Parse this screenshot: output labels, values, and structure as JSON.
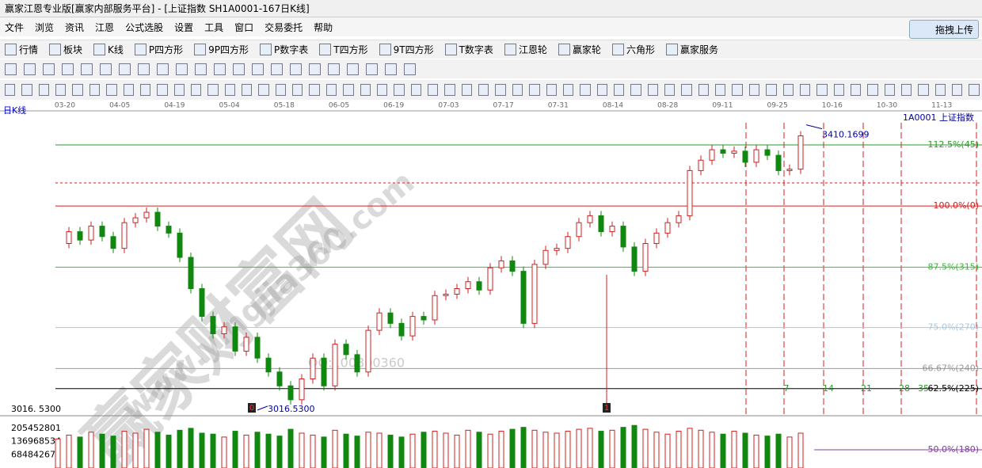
{
  "window": {
    "title": "赢家江恩专业版[赢家内部服务平台] - [上证指数  SH1A0001-167日K线]",
    "menu": [
      "文件",
      "浏览",
      "资讯",
      "江恩",
      "公式选股",
      "设置",
      "工具",
      "窗口",
      "交易委托",
      "帮助"
    ],
    "upload": "拖拽上传",
    "toolbar": [
      "行情",
      "板块",
      "K线",
      "P四方形",
      "9P四方形",
      "P数字表",
      "T四方形",
      "9T四方形",
      "T数字表",
      "江恩轮",
      "赢家轮",
      "六角形",
      "赢家服务"
    ]
  },
  "chart_data": {
    "type": "candlestick",
    "period": "日K线",
    "symbol": "1A0001  上证指数",
    "dates": [
      "03-20",
      "04-05",
      "04-19",
      "05-04",
      "05-18",
      "06-05",
      "06-19",
      "07-03",
      "07-17",
      "07-31",
      "08-14",
      "08-28",
      "09-11",
      "09-25",
      "10-16",
      "10-30",
      "11-13"
    ],
    "closes": [
      3245,
      3262,
      3250,
      3270,
      3255,
      3238,
      3275,
      3282,
      3290,
      3270,
      3260,
      3225,
      3180,
      3140,
      3115,
      3125,
      3090,
      3110,
      3080,
      3060,
      3040,
      3020,
      3050,
      3080,
      3040,
      3100,
      3085,
      3060,
      3120,
      3145,
      3130,
      3112,
      3140,
      3135,
      3170,
      3172,
      3180,
      3190,
      3178,
      3210,
      3220,
      3205,
      3130,
      3215,
      3235,
      3238,
      3255,
      3275,
      3285,
      3262,
      3270,
      3240,
      3205,
      3245,
      3260,
      3275,
      3285,
      3350,
      3365,
      3380,
      3375,
      3378,
      3362,
      3380,
      3372,
      3350,
      3352,
      3400
    ],
    "ylim": [
      2997,
      3436
    ],
    "high_label": "3410.1699",
    "high": 3410.1699,
    "low_label": "3016.5300",
    "low": 3016.53,
    "low_axis_label": "3016. 5300",
    "levels": [
      {
        "label": "112.5%(45)",
        "price": 3387,
        "color": "#2a9a2a"
      },
      {
        "label": "100.0%(0)",
        "price": 3299,
        "color": "#d02020"
      },
      {
        "label": "87.5%(315)",
        "price": 3211,
        "color": "#30c030"
      },
      {
        "label": "75.0%(270)",
        "price": 3124,
        "color": "#a8c8e0"
      },
      {
        "label": "66.67%(240)",
        "price": 3065,
        "color": "#999999"
      },
      {
        "label": "62.5%(225)",
        "price": 3036,
        "color": "#000000"
      }
    ],
    "volume_level": "50.0%(180)",
    "cycles": [
      "7",
      "14",
      "21",
      "28",
      "35"
    ],
    "markers": [
      "0",
      "1"
    ],
    "volumes": [
      150000000,
      170000000,
      160000000,
      185000000,
      175000000,
      165000000,
      190000000,
      180000000,
      200000000,
      185000000,
      170000000,
      195000000,
      205000000,
      180000000,
      175000000,
      160000000,
      190000000,
      170000000,
      185000000,
      175000000,
      165000000,
      200000000,
      180000000,
      170000000,
      160000000,
      195000000,
      175000000,
      165000000,
      185000000,
      180000000,
      170000000,
      160000000,
      175000000,
      185000000,
      190000000,
      180000000,
      170000000,
      195000000,
      185000000,
      175000000,
      190000000,
      200000000,
      210000000,
      195000000,
      185000000,
      180000000,
      190000000,
      200000000,
      205000000,
      190000000,
      195000000,
      210000000,
      220000000,
      200000000,
      185000000,
      175000000,
      190000000,
      205000000,
      195000000,
      185000000,
      175000000,
      190000000,
      180000000,
      170000000,
      165000000,
      175000000,
      160000000,
      180000000
    ],
    "vlim": [
      0,
      270000000
    ],
    "vticks": [
      205452801,
      136968534,
      68484267
    ],
    "watermarks": [
      "赢家财富网",
      "www.yingjia360.com",
      "QQ:100800360"
    ]
  }
}
